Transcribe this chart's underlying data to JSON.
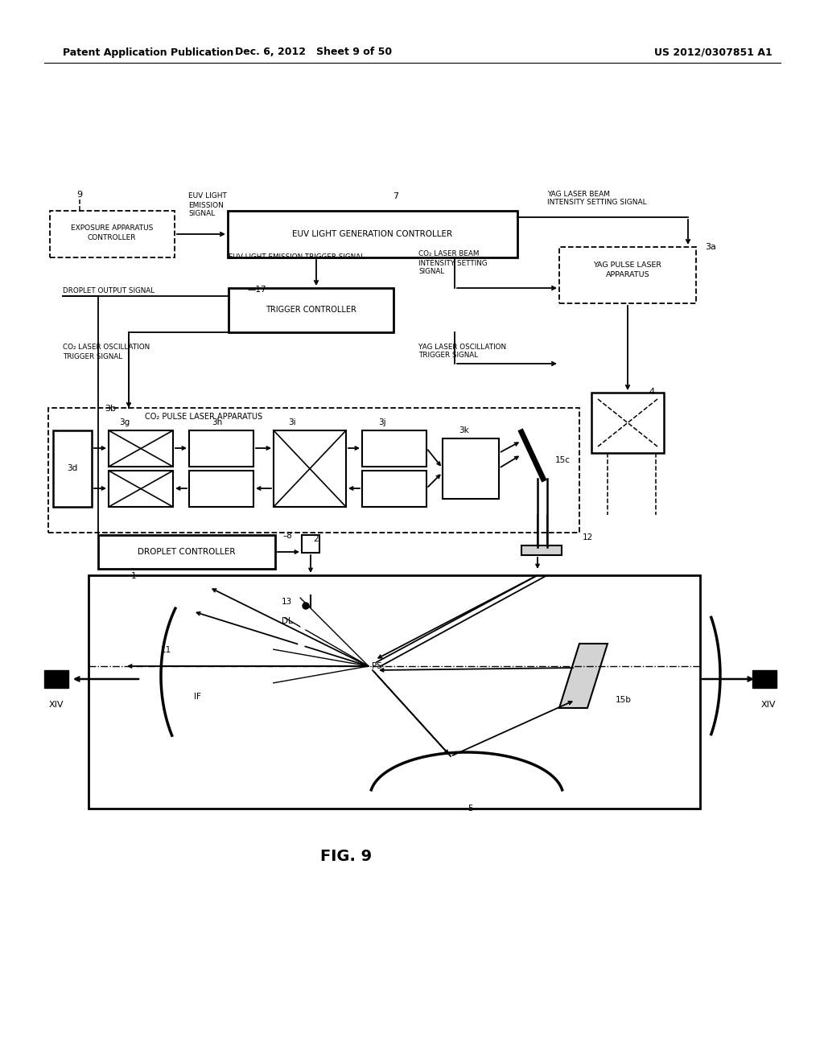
{
  "title": "FIG. 9",
  "header_left": "Patent Application Publication",
  "header_center": "Dec. 6, 2012   Sheet 9 of 50",
  "header_right": "US 2012/0307851 A1",
  "bg_color": "#ffffff"
}
